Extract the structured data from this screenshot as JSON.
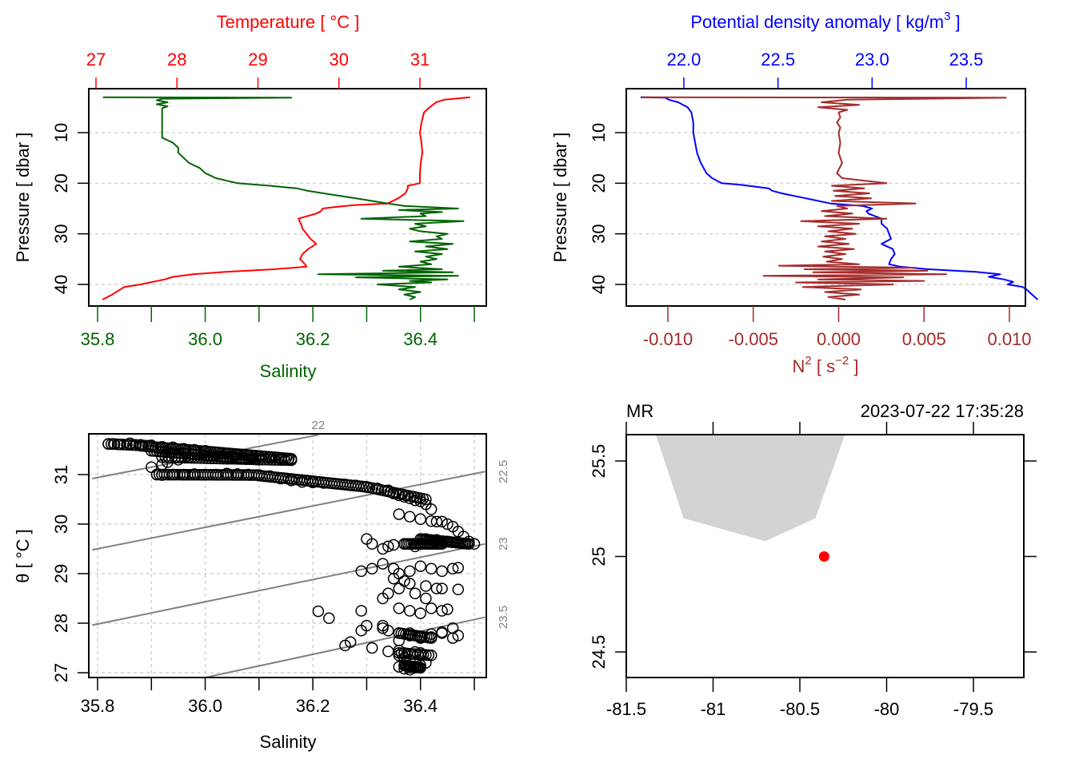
{
  "colors": {
    "temperature": "#ff0000",
    "salinity": "#006400",
    "density": "#0000ff",
    "n2": "#a52a2a",
    "isopycnal": "#808080",
    "grid": "#d3d3d3",
    "coast": "#d3d3d3",
    "station": "#ff0000",
    "frame": "#000000"
  },
  "chart_data": [
    {
      "id": "ts-profile",
      "type": "line",
      "title": "",
      "top_axis": {
        "label": "Temperature [ °C ]",
        "range": [
          27,
          31.6
        ],
        "ticks": [
          27,
          28,
          29,
          30,
          31
        ]
      },
      "bottom_axis": {
        "label": "Salinity",
        "range": [
          35.8,
          36.5
        ],
        "ticks": [
          35.8,
          35.9,
          36.0,
          36.1,
          36.2,
          36.3,
          36.4,
          36.5
        ],
        "tick_labels": [
          "35.8",
          "",
          "36.0",
          "",
          "36.2",
          "",
          "36.4",
          ""
        ]
      },
      "yaxis": {
        "label": "Pressure [ dbar ]",
        "range": [
          44.5,
          1.5
        ],
        "ticks": [
          10,
          20,
          30,
          40
        ],
        "reversed": true
      },
      "grid": "horizontal-dotted",
      "series": [
        {
          "name": "Temperature",
          "axis": "top",
          "color_key": "temperature",
          "pressure": [
            3,
            3.5,
            4,
            5,
            6,
            8,
            10,
            12,
            14,
            16,
            18,
            20,
            20.5,
            21,
            22,
            23,
            24,
            24.3,
            24.7,
            25,
            25.5,
            26,
            27,
            28,
            29,
            30,
            31,
            32,
            33,
            34,
            35,
            36,
            36.5,
            37,
            37.5,
            38,
            38.5,
            39,
            39.5,
            40,
            40.5,
            41,
            42,
            43
          ],
          "values": [
            31.62,
            31.3,
            31.2,
            31.12,
            31.05,
            31.02,
            31.0,
            31.02,
            31.03,
            31.01,
            31.0,
            31.0,
            30.85,
            30.85,
            30.82,
            30.73,
            30.6,
            30.2,
            29.95,
            29.8,
            29.78,
            29.72,
            29.5,
            29.53,
            29.55,
            29.6,
            29.65,
            29.72,
            29.62,
            29.55,
            29.52,
            29.58,
            29.6,
            29.2,
            28.6,
            28.2,
            27.95,
            27.85,
            27.7,
            27.55,
            27.35,
            27.3,
            27.2,
            27.08
          ]
        },
        {
          "name": "Salinity",
          "axis": "bottom",
          "color_key": "salinity",
          "pressure": [
            3,
            3.1,
            3.3,
            3.6,
            4,
            4.4,
            4.8,
            5.2,
            6,
            7,
            8,
            9,
            10,
            11,
            11.5,
            12,
            13,
            14,
            15,
            16,
            17,
            18,
            19,
            19.5,
            20,
            20.5,
            21,
            21.5,
            22,
            23,
            24,
            24.5,
            25,
            25.3,
            25.7,
            26,
            26.5,
            27,
            27.5,
            28,
            28.5,
            29,
            29.5,
            30,
            30.5,
            31,
            31.5,
            32,
            32.5,
            33,
            33.5,
            34,
            34.5,
            35,
            35.5,
            36,
            36.5,
            37,
            37.3,
            37.6,
            38,
            38.3,
            38.6,
            39,
            39.3,
            39.6,
            40,
            40.5,
            41,
            41.5,
            42,
            42.5,
            43
          ],
          "values": [
            35.81,
            36.16,
            35.92,
            35.91,
            35.93,
            35.91,
            35.93,
            35.92,
            35.92,
            35.92,
            35.92,
            35.92,
            35.92,
            35.92,
            35.93,
            35.94,
            35.95,
            35.95,
            35.96,
            35.97,
            35.99,
            36.0,
            36.02,
            36.04,
            36.06,
            36.12,
            36.17,
            36.19,
            36.22,
            36.28,
            36.34,
            36.37,
            36.47,
            36.36,
            36.44,
            36.4,
            36.41,
            36.29,
            36.48,
            36.39,
            36.41,
            36.38,
            36.4,
            36.45,
            36.43,
            36.44,
            36.38,
            36.46,
            36.41,
            36.45,
            36.39,
            36.44,
            36.41,
            36.43,
            36.4,
            36.42,
            36.36,
            36.44,
            36.33,
            36.46,
            36.21,
            36.47,
            36.28,
            36.45,
            36.38,
            36.42,
            36.32,
            36.39,
            36.36,
            36.4,
            36.37,
            36.39,
            36.38
          ]
        }
      ]
    },
    {
      "id": "density-n2-profile",
      "type": "line",
      "top_axis": {
        "label": "Potential density anomaly [ kg/m³ ]",
        "label_main": "Potential density anomaly [ kg/m",
        "label_sup": "3",
        "label_end": " ]",
        "range": [
          21.82,
          23.88
        ],
        "ticks": [
          22.0,
          22.5,
          23.0,
          23.5
        ],
        "tick_labels": [
          "22.0",
          "22.5",
          "23.0",
          "23.5"
        ]
      },
      "bottom_axis": {
        "label": "N² [ s⁻² ]",
        "label_main": "N",
        "label_sup": "2",
        "label_mid": " [ s",
        "label_sup2": "−2",
        "label_end": " ]",
        "range": [
          -0.0123,
          0.0111
        ],
        "ticks": [
          -0.01,
          -0.005,
          0.0,
          0.005,
          0.01
        ],
        "tick_labels": [
          "-0.010",
          "-0.005",
          "0.000",
          "0.005",
          "0.010"
        ]
      },
      "yaxis": {
        "label": "Pressure [ dbar ]",
        "range": [
          44.5,
          1.5
        ],
        "ticks": [
          10,
          20,
          30,
          40
        ],
        "reversed": true
      },
      "grid": "horizontal-dotted",
      "series": [
        {
          "name": "Potential density anomaly",
          "axis": "top",
          "color_key": "density",
          "pressure": [
            3,
            3.1,
            3.5,
            4,
            5,
            6,
            8,
            10,
            12,
            14,
            16,
            18,
            19,
            20,
            20.3,
            21,
            21.5,
            22,
            23,
            24,
            24.5,
            25,
            25.5,
            26,
            27,
            28,
            29,
            30,
            31,
            32,
            33,
            34,
            35,
            36,
            36.5,
            37,
            37.5,
            38,
            38.5,
            39,
            39.5,
            40,
            40.5,
            41,
            42,
            43
          ],
          "values": [
            21.77,
            21.9,
            21.92,
            21.97,
            22.02,
            22.04,
            22.05,
            22.05,
            22.06,
            22.07,
            22.09,
            22.12,
            22.15,
            22.2,
            22.3,
            22.45,
            22.47,
            22.52,
            22.65,
            22.78,
            22.95,
            23.0,
            22.97,
            22.98,
            23.05,
            23.05,
            23.08,
            23.09,
            23.1,
            23.05,
            23.11,
            23.12,
            23.1,
            23.09,
            23.15,
            23.3,
            23.55,
            23.68,
            23.62,
            23.7,
            23.75,
            23.72,
            23.8,
            23.82,
            23.85,
            23.88
          ]
        },
        {
          "name": "N2",
          "axis": "bottom",
          "color_key": "n2",
          "pressure": [
            3,
            3.1,
            3.5,
            4,
            4.5,
            5,
            5.5,
            6,
            7,
            8,
            9,
            10,
            12,
            14,
            16,
            18,
            19,
            20,
            20.5,
            21,
            21.5,
            22,
            22.5,
            23,
            23.5,
            24,
            24.5,
            25,
            25.5,
            26,
            26.5,
            27,
            27.5,
            28,
            28.5,
            29,
            29.5,
            30,
            30.5,
            31,
            31.5,
            32,
            32.5,
            33,
            33.5,
            34,
            34.5,
            35,
            35.5,
            36,
            36.3,
            36.7,
            37,
            37.3,
            37.6,
            38,
            38.3,
            38.6,
            39,
            39.3,
            39.6,
            40,
            40.5,
            41,
            41.5,
            42,
            42.5,
            43
          ],
          "values": [
            -0.0115,
            0.0098,
            0.0005,
            -0.001,
            0.0012,
            -0.0012,
            0.0005,
            0.0,
            0.0001,
            -0.0001,
            0.0001,
            0.0,
            0.0001,
            0.0,
            0.0002,
            -0.0001,
            0.0002,
            0.0028,
            -0.0004,
            0.0015,
            -0.0003,
            0.0018,
            -0.0002,
            0.0019,
            -0.0004,
            0.0045,
            -0.0001,
            0.0005,
            -0.001,
            0.0008,
            -0.0008,
            0.0028,
            -0.0022,
            0.0012,
            -0.0012,
            0.0008,
            -0.0006,
            0.001,
            -0.0008,
            0.0004,
            -0.001,
            0.0006,
            -0.0012,
            0.0009,
            -0.0008,
            0.0004,
            -0.0009,
            0.0002,
            -0.0007,
            0.0012,
            -0.0035,
            0.0045,
            -0.002,
            0.0052,
            -0.0015,
            0.0063,
            -0.0044,
            0.0038,
            -0.0012,
            0.005,
            -0.0025,
            0.0032,
            -0.0021,
            0.0013,
            -0.0008,
            0.0012,
            -0.0006,
            0.0004
          ]
        }
      ]
    },
    {
      "id": "ts-diagram",
      "type": "scatter",
      "xlabel": "Salinity",
      "ylabel": "θ [ °C ]",
      "xlim": [
        35.79,
        36.52
      ],
      "ylim": [
        26.9,
        31.8
      ],
      "xticks": [
        35.8,
        35.9,
        36.0,
        36.1,
        36.2,
        36.3,
        36.4,
        36.5
      ],
      "xtick_labels": [
        "35.8",
        "",
        "36.0",
        "",
        "36.2",
        "",
        "36.4",
        ""
      ],
      "yticks": [
        27,
        28,
        29,
        30,
        31
      ],
      "grid": "dotted",
      "isopycnals": [
        {
          "label": "22",
          "S": [
            35.79,
            36.21
          ],
          "theta": [
            30.92,
            31.8
          ]
        },
        {
          "label": "22.5",
          "S": [
            35.79,
            36.52
          ],
          "theta": [
            29.48,
            31.06
          ]
        },
        {
          "label": "23",
          "S": [
            35.79,
            36.52
          ],
          "theta": [
            27.96,
            29.6
          ]
        },
        {
          "label": "23.5",
          "S": [
            36.0,
            36.52
          ],
          "theta": [
            26.9,
            28.12
          ]
        }
      ],
      "points_S": [
        35.82,
        35.83,
        35.84,
        35.86,
        35.87,
        35.88,
        35.9,
        35.92,
        35.94,
        35.96,
        35.98,
        36.0,
        36.02,
        36.04,
        36.06,
        36.08,
        36.1,
        36.12,
        36.14,
        36.16,
        35.9,
        35.92,
        35.93,
        35.95,
        35.97,
        35.91,
        35.92,
        35.94,
        35.96,
        35.98,
        36.0,
        36.02,
        36.04,
        36.06,
        36.08,
        36.1,
        36.12,
        36.14,
        36.16,
        36.18,
        36.2,
        36.22,
        36.24,
        36.26,
        36.28,
        36.3,
        36.32,
        36.34,
        36.35,
        36.36,
        36.37,
        36.38,
        36.39,
        36.4,
        36.41,
        36.42,
        36.36,
        36.38,
        36.4,
        36.42,
        36.43,
        36.44,
        36.45,
        36.46,
        36.47,
        36.48,
        36.49,
        36.5,
        36.41,
        36.43,
        36.45,
        36.4,
        36.39,
        36.37,
        36.35,
        36.34,
        36.33,
        36.31,
        36.3,
        36.29,
        36.31,
        36.33,
        36.35,
        36.36,
        36.38,
        36.4,
        36.42,
        36.44,
        36.46,
        36.47,
        36.43,
        36.41,
        36.38,
        36.36,
        36.34,
        36.33,
        36.35,
        36.37,
        36.39,
        36.41,
        36.44,
        36.47,
        36.36,
        36.38,
        36.4,
        36.42,
        36.44,
        36.45,
        36.21,
        36.23,
        36.29,
        36.27,
        36.26,
        36.3,
        36.33,
        36.34,
        36.36,
        36.38,
        36.4,
        36.42,
        36.44,
        36.46,
        36.47,
        36.29,
        36.31,
        36.36,
        36.38,
        36.4,
        36.42,
        36.44,
        36.46,
        36.33,
        36.34,
        36.36,
        36.37,
        36.38,
        36.39,
        36.4,
        36.36,
        36.37,
        36.38,
        36.39,
        36.37,
        36.38,
        36.36,
        36.37,
        36.38,
        36.39,
        36.4,
        36.41
      ],
      "points_theta": [
        31.62,
        31.62,
        31.61,
        31.63,
        31.6,
        31.6,
        31.59,
        31.56,
        31.55,
        31.52,
        31.5,
        31.48,
        31.45,
        31.42,
        31.4,
        31.38,
        31.36,
        31.34,
        31.32,
        31.3,
        31.15,
        31.2,
        31.25,
        31.3,
        31.35,
        31.0,
        30.99,
        31.0,
        31.0,
        31.01,
        31.0,
        31.0,
        31.02,
        31.01,
        31.0,
        30.99,
        30.97,
        30.92,
        30.88,
        30.85,
        30.84,
        30.83,
        30.82,
        30.8,
        30.78,
        30.75,
        30.72,
        30.68,
        30.62,
        30.58,
        30.55,
        30.52,
        30.48,
        30.46,
        30.4,
        30.3,
        30.2,
        30.15,
        30.1,
        30.06,
        30.05,
        30.05,
        30.0,
        29.95,
        29.85,
        29.75,
        29.65,
        29.6,
        29.7,
        29.68,
        29.65,
        29.6,
        29.55,
        29.6,
        29.58,
        29.55,
        29.5,
        29.6,
        29.7,
        29.05,
        29.1,
        29.2,
        29.1,
        29.0,
        29.05,
        29.15,
        29.1,
        29.05,
        29.1,
        29.12,
        28.7,
        28.75,
        28.8,
        28.7,
        28.6,
        28.5,
        28.9,
        28.85,
        28.6,
        28.5,
        28.7,
        28.68,
        28.3,
        28.25,
        28.2,
        28.3,
        28.25,
        28.28,
        28.24,
        28.1,
        28.25,
        27.62,
        27.55,
        27.95,
        27.9,
        27.85,
        27.8,
        27.75,
        27.7,
        27.72,
        27.8,
        27.9,
        27.75,
        27.85,
        27.5,
        27.65,
        27.8,
        27.72,
        27.78,
        27.82,
        27.7,
        27.95,
        27.43,
        27.45,
        27.4,
        27.38,
        27.42,
        27.4,
        27.35,
        27.3,
        27.25,
        27.2,
        27.15,
        27.1,
        27.12,
        27.08,
        27.06,
        27.1,
        27.15,
        27.2,
        27.35
      ]
    },
    {
      "id": "station-map",
      "type": "scatter",
      "title_left": "MR",
      "title_right": "2023-07-22 17:35:28",
      "xlim": [
        -81.5,
        -79.62
      ],
      "ylim": [
        24.38,
        25.64
      ],
      "xticks": [
        -81.5,
        -81,
        -80.5,
        -80,
        -79.5
      ],
      "xtick_labels": [
        "-81.5",
        "-81",
        "-80.5",
        "-80",
        "-79.5"
      ],
      "yticks": [
        24.5,
        25,
        25.5
      ],
      "ytick_labels": [
        "24.5",
        "25",
        "25.5"
      ],
      "coastline_polygon": {
        "lon": [
          -81.33,
          -81.17,
          -80.7,
          -80.41,
          -80.24
        ],
        "lat": [
          25.64,
          25.2,
          25.08,
          25.2,
          25.64
        ]
      },
      "station": {
        "lon": -80.36,
        "lat": 25.0
      }
    }
  ]
}
